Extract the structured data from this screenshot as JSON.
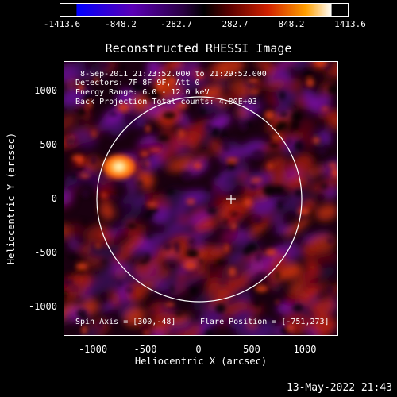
{
  "colorbar": {
    "ticks": [
      "-1413.6",
      "-848.2",
      "-282.7",
      "282.7",
      "848.2",
      "1413.6"
    ],
    "colors": [
      "#0000ff",
      "#5500aa",
      "#220033",
      "#000000",
      "#550000",
      "#cc2200",
      "#ff9900",
      "#ffffff"
    ]
  },
  "title": "Reconstructed RHESSI Image",
  "annotations": {
    "line1": "8-Sep-2011 21:23:52.000 to 21:29:52.000",
    "line2": "Detectors: 7F 8F 9F, Att 0",
    "line3": "Energy Range: 6.0 - 12.0 keV",
    "line4": "Back Projection    Total counts: 4.80E+03",
    "spin_axis": "Spin Axis = [300,-48]",
    "flare_position": "Flare Position = [-751,273]"
  },
  "axes": {
    "xlabel": "Heliocentric X (arcsec)",
    "ylabel": "Heliocentric Y (arcsec)",
    "xticks": [
      "-1000",
      "-500",
      "0",
      "500",
      "1000"
    ],
    "yticks": [
      "1000",
      "500",
      "0",
      "-500",
      "-1000"
    ],
    "xlim": [
      -1290,
      1300
    ],
    "ylim": [
      -1290,
      1260
    ]
  },
  "footer": {
    "timestamp": "13-May-2022 21:43"
  }
}
